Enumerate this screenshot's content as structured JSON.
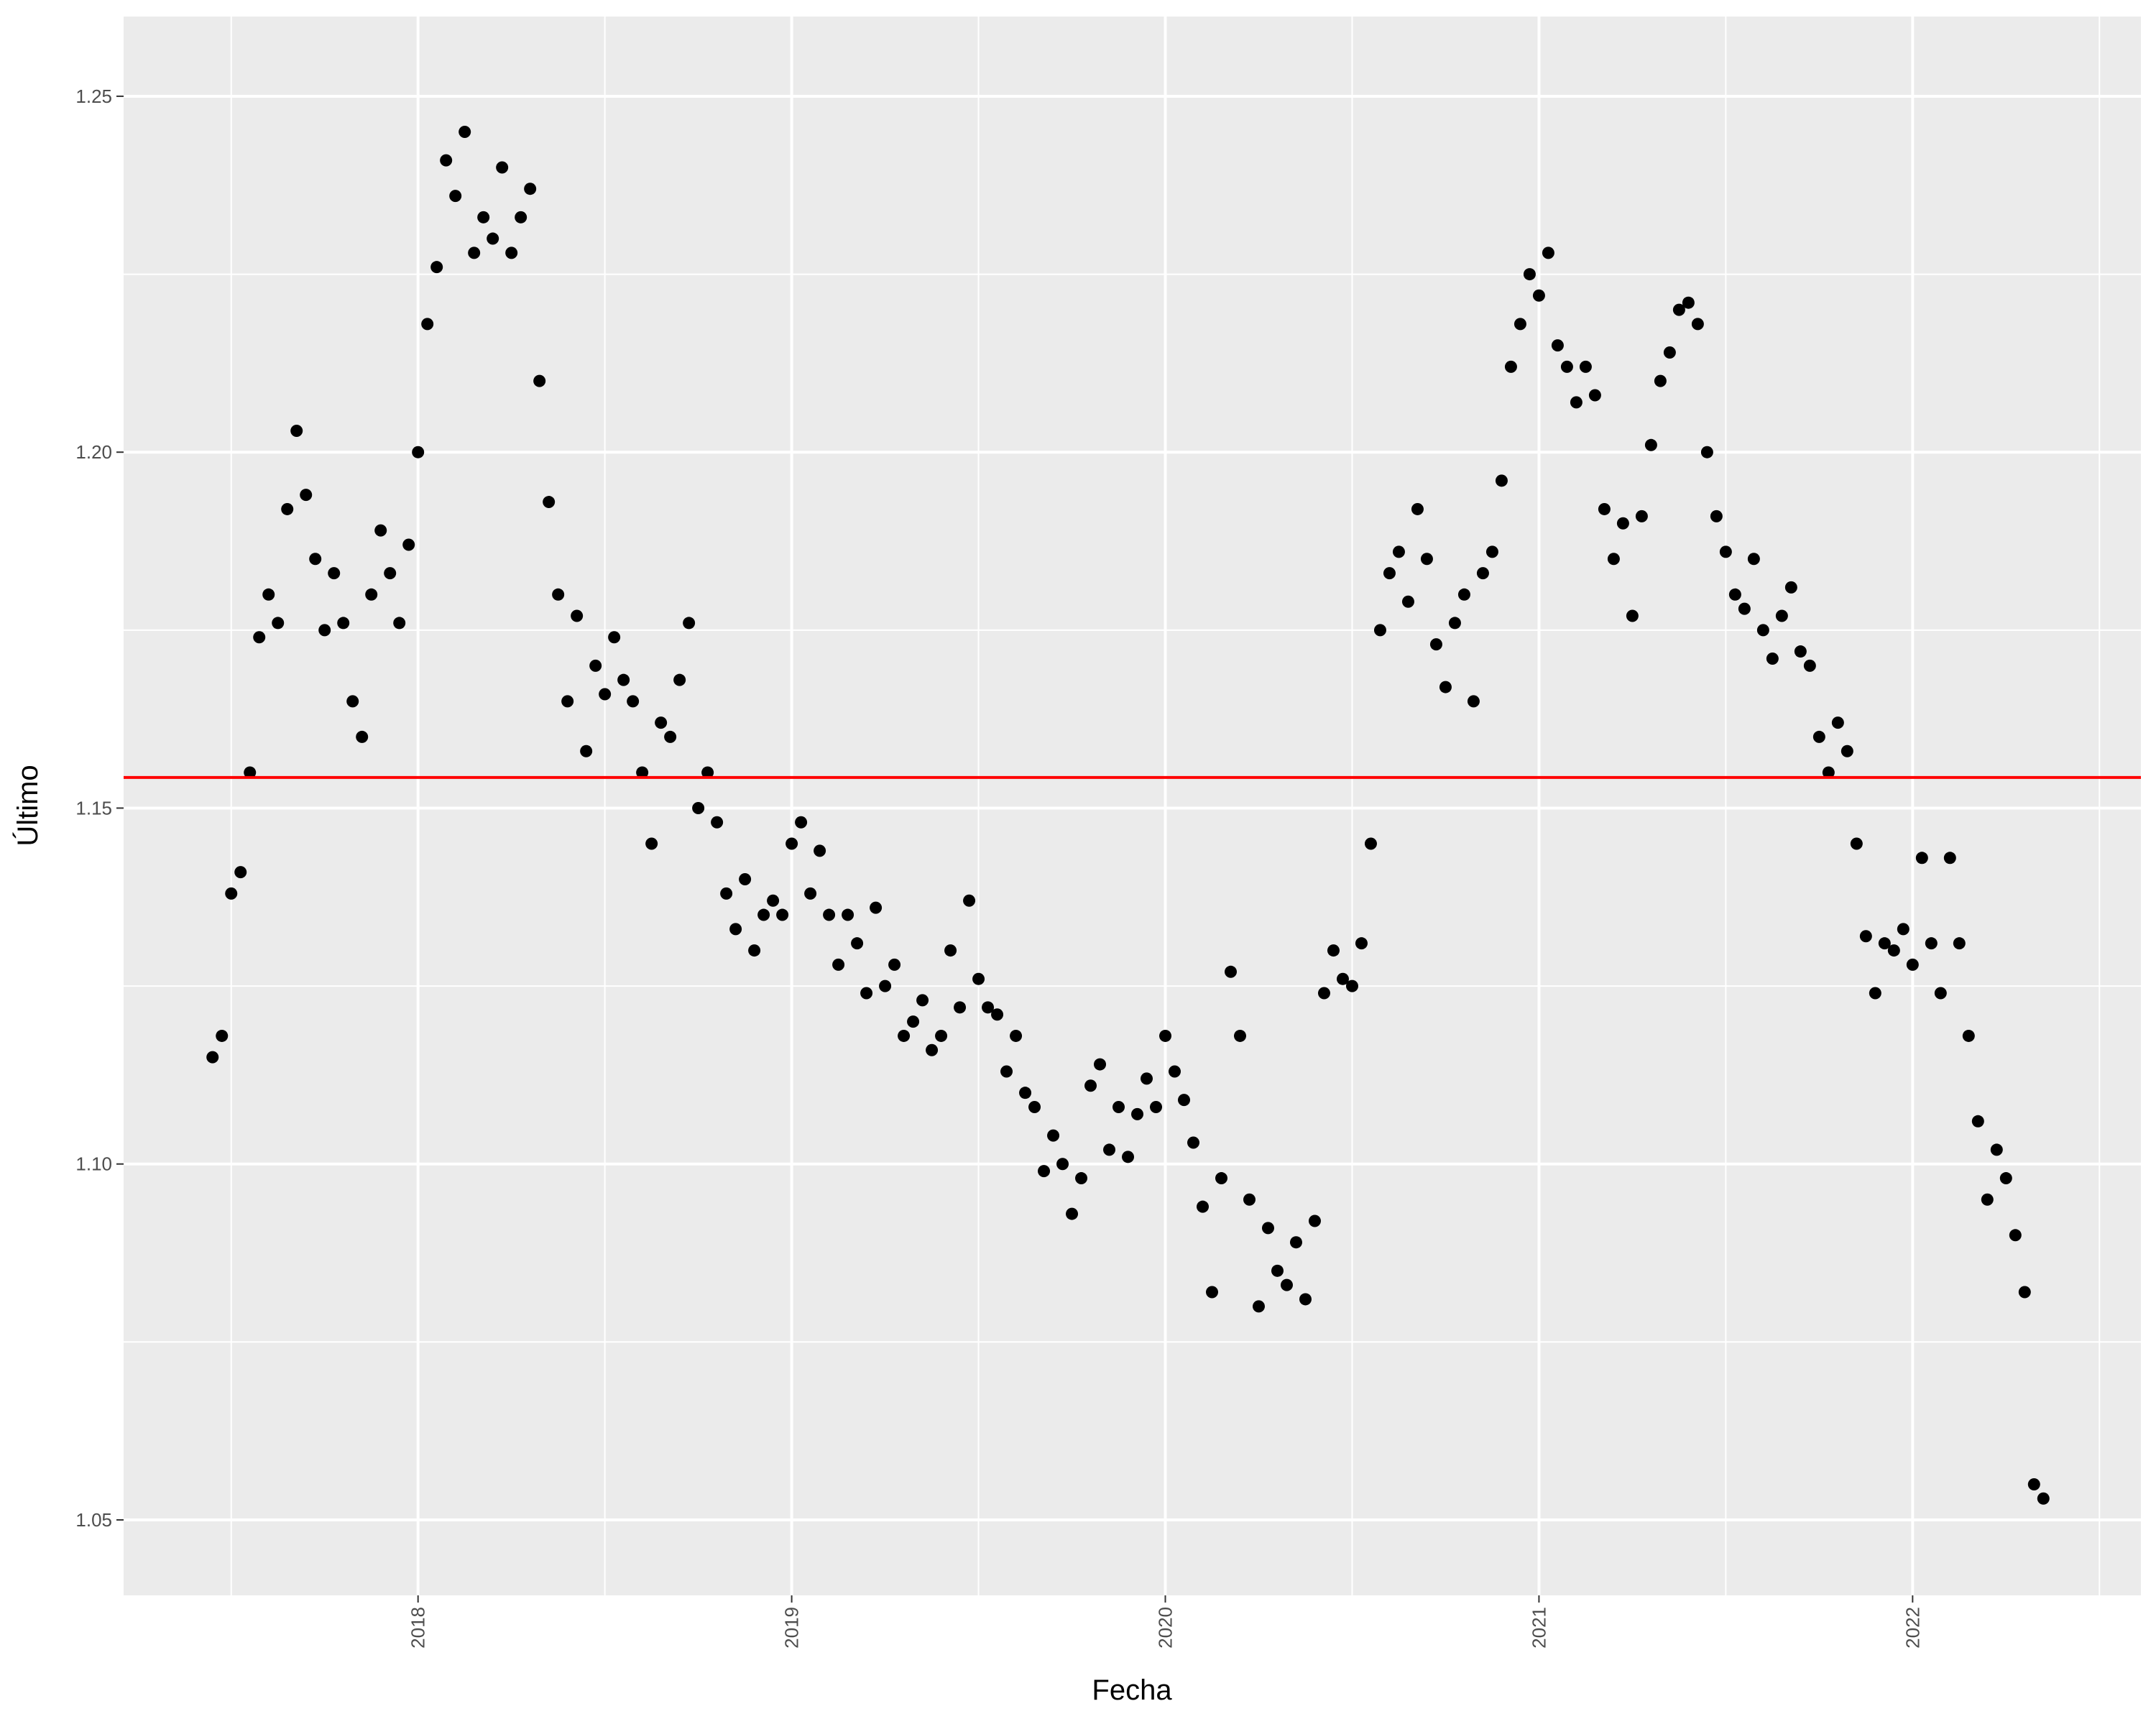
{
  "chart_data": {
    "type": "scatter",
    "x_label": "Fecha",
    "y_label": "Último",
    "color": "#000000",
    "grid": true,
    "xlim": [
      2017.212,
      2022.611
    ],
    "ylim": [
      1.0394,
      1.2612
    ],
    "xticks": [
      2018,
      2019,
      2020,
      2021,
      2022
    ],
    "yticks": [
      1.05,
      {
        "value": 1.1,
        "label": "1.10"
      },
      1.15,
      {
        "value": 1.2,
        "label": "1.20"
      },
      1.25
    ],
    "xminor": [
      2017.5,
      2018.5,
      2019.5,
      2020.5,
      2021.5,
      2022.5
    ],
    "yminor": [
      1.075,
      1.125,
      1.175,
      1.225
    ],
    "hline": {
      "value": 1.1543,
      "color": "#ff0000"
    },
    "x": [
      2017.45,
      2017.475,
      2017.5,
      2017.525,
      2017.55,
      2017.575,
      2017.6,
      2017.625,
      2017.65,
      2017.675,
      2017.7,
      2017.725,
      2017.75,
      2017.775,
      2017.8,
      2017.825,
      2017.85,
      2017.875,
      2017.9,
      2017.925,
      2017.95,
      2017.975,
      2018,
      2018.025,
      2018.05,
      2018.075,
      2018.1,
      2018.125,
      2018.15,
      2018.175,
      2018.2,
      2018.225,
      2018.25,
      2018.275,
      2018.3,
      2018.325,
      2018.35,
      2018.375,
      2018.4,
      2018.425,
      2018.45,
      2018.475,
      2018.5,
      2018.525,
      2018.55,
      2018.575,
      2018.6,
      2018.625,
      2018.65,
      2018.675,
      2018.7,
      2018.725,
      2018.75,
      2018.775,
      2018.8,
      2018.825,
      2018.85,
      2018.875,
      2018.9,
      2018.925,
      2018.95,
      2018.975,
      2019,
      2019.025,
      2019.05,
      2019.075,
      2019.1,
      2019.125,
      2019.15,
      2019.175,
      2019.2,
      2019.225,
      2019.25,
      2019.275,
      2019.3,
      2019.325,
      2019.35,
      2019.375,
      2019.4,
      2019.425,
      2019.45,
      2019.475,
      2019.5,
      2019.525,
      2019.55,
      2019.575,
      2019.6,
      2019.625,
      2019.65,
      2019.675,
      2019.7,
      2019.725,
      2019.75,
      2019.775,
      2019.8,
      2019.825,
      2019.85,
      2019.875,
      2019.9,
      2019.925,
      2019.95,
      2019.975,
      2020,
      2020.025,
      2020.05,
      2020.075,
      2020.1,
      2020.125,
      2020.15,
      2020.175,
      2020.2,
      2020.225,
      2020.25,
      2020.275,
      2020.3,
      2020.325,
      2020.35,
      2020.375,
      2020.4,
      2020.425,
      2020.45,
      2020.475,
      2020.5,
      2020.525,
      2020.55,
      2020.575,
      2020.6,
      2020.625,
      2020.65,
      2020.675,
      2020.7,
      2020.725,
      2020.75,
      2020.775,
      2020.8,
      2020.825,
      2020.85,
      2020.875,
      2020.9,
      2020.925,
      2020.95,
      2020.975,
      2021,
      2021.025,
      2021.05,
      2021.075,
      2021.1,
      2021.125,
      2021.15,
      2021.175,
      2021.2,
      2021.225,
      2021.25,
      2021.275,
      2021.3,
      2021.325,
      2021.35,
      2021.375,
      2021.4,
      2021.425,
      2021.45,
      2021.475,
      2021.5,
      2021.525,
      2021.55,
      2021.575,
      2021.6,
      2021.625,
      2021.65,
      2021.675,
      2021.7,
      2021.725,
      2021.75,
      2021.775,
      2021.8,
      2021.825,
      2021.85,
      2021.875,
      2021.9,
      2021.925,
      2021.95,
      2021.975,
      2022,
      2022.025,
      2022.05,
      2022.075,
      2022.1,
      2022.125,
      2022.15,
      2022.175,
      2022.2,
      2022.225,
      2022.25,
      2022.275,
      2022.3,
      2022.325,
      2022.35
    ],
    "values": [
      1.115,
      1.118,
      1.138,
      1.141,
      1.155,
      1.174,
      1.18,
      1.176,
      1.192,
      1.203,
      1.194,
      1.185,
      1.175,
      1.183,
      1.176,
      1.165,
      1.16,
      1.18,
      1.189,
      1.183,
      1.176,
      1.187,
      1.2,
      1.218,
      1.226,
      1.241,
      1.236,
      1.245,
      1.228,
      1.233,
      1.23,
      1.24,
      1.228,
      1.233,
      1.237,
      1.21,
      1.193,
      1.18,
      1.165,
      1.177,
      1.158,
      1.17,
      1.166,
      1.174,
      1.168,
      1.165,
      1.155,
      1.145,
      1.162,
      1.16,
      1.168,
      1.176,
      1.15,
      1.155,
      1.148,
      1.138,
      1.133,
      1.14,
      1.13,
      1.135,
      1.137,
      1.135,
      1.145,
      1.148,
      1.138,
      1.144,
      1.135,
      1.128,
      1.135,
      1.131,
      1.124,
      1.136,
      1.125,
      1.128,
      1.118,
      1.12,
      1.123,
      1.116,
      1.118,
      1.13,
      1.122,
      1.137,
      1.126,
      1.122,
      1.121,
      1.113,
      1.118,
      1.11,
      1.108,
      1.099,
      1.104,
      1.1,
      1.093,
      1.098,
      1.111,
      1.114,
      1.102,
      1.108,
      1.101,
      1.107,
      1.112,
      1.108,
      1.118,
      1.113,
      1.109,
      1.103,
      1.094,
      1.082,
      1.098,
      1.127,
      1.118,
      1.095,
      1.08,
      1.091,
      1.085,
      1.083,
      1.089,
      1.081,
      1.092,
      1.124,
      1.13,
      1.126,
      1.125,
      1.131,
      1.145,
      1.175,
      1.183,
      1.186,
      1.179,
      1.192,
      1.185,
      1.173,
      1.167,
      1.176,
      1.18,
      1.165,
      1.183,
      1.186,
      1.196,
      1.212,
      1.218,
      1.225,
      1.222,
      1.228,
      1.215,
      1.212,
      1.207,
      1.212,
      1.208,
      1.192,
      1.185,
      1.19,
      1.177,
      1.191,
      1.201,
      1.21,
      1.214,
      1.22,
      1.221,
      1.218,
      1.2,
      1.191,
      1.186,
      1.18,
      1.178,
      1.185,
      1.175,
      1.171,
      1.177,
      1.181,
      1.172,
      1.17,
      1.16,
      1.155,
      1.162,
      1.158,
      1.145,
      1.132,
      1.124,
      1.131,
      1.13,
      1.133,
      1.128,
      1.143,
      1.131,
      1.124,
      1.143,
      1.131,
      1.118,
      1.106,
      1.095,
      1.102,
      1.098,
      1.09,
      1.082,
      1.055,
      1.053
    ]
  }
}
